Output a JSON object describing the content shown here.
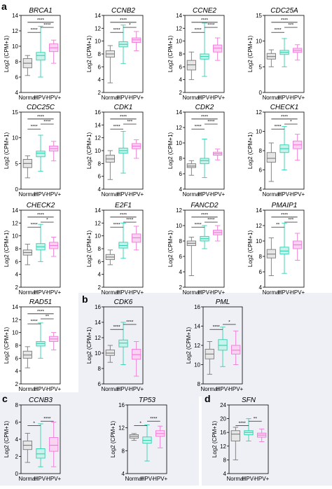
{
  "colors": {
    "Normal": "#7a7a7a",
    "HPV-": "#2fd0b0",
    "HPV+": "#f07ad6",
    "Normal_fill": "#e6e6e6",
    "HPV-_fill": "#c8f3ea",
    "HPV+_fill": "#fbd3f2",
    "panel_bg": "#eef0f6"
  },
  "panel_labels": [
    "a",
    "b",
    "c",
    "d"
  ],
  "ylabel": "Log2 (CPM+1)",
  "chart_data": [
    {
      "type": "box",
      "panel": "a",
      "gene": "BRCA1",
      "categories": [
        "Normal",
        "HPV-",
        "HPV+"
      ],
      "ylim": [
        4,
        14
      ],
      "yticks": [
        4,
        6,
        8,
        10,
        12,
        14
      ],
      "boxes": [
        {
          "min": 6.2,
          "q1": 7.2,
          "median": 7.8,
          "q3": 8.4,
          "max": 8.8
        },
        {
          "min": 6.0,
          "q1": 8.2,
          "median": 8.8,
          "q3": 9.2,
          "max": 12.6
        },
        {
          "min": 7.8,
          "q1": 9.3,
          "median": 9.8,
          "q3": 10.3,
          "max": 10.8
        }
      ],
      "sig": [
        {
          "a": 0,
          "b": 1,
          "label": "****"
        },
        {
          "a": 0,
          "b": 2,
          "label": "****"
        },
        {
          "a": 1,
          "b": 2,
          "label": "****"
        }
      ]
    },
    {
      "type": "box",
      "panel": "a",
      "gene": "CCNB2",
      "categories": [
        "Normal",
        "HPV-",
        "HPV+"
      ],
      "ylim": [
        2,
        14
      ],
      "yticks": [
        2,
        4,
        6,
        8,
        10,
        12,
        14
      ],
      "boxes": [
        {
          "min": 3.5,
          "q1": 7.5,
          "median": 8.0,
          "q3": 8.5,
          "max": 9.3
        },
        {
          "min": 6.5,
          "q1": 9.1,
          "median": 9.5,
          "q3": 9.9,
          "max": 12.5
        },
        {
          "min": 8.5,
          "q1": 9.8,
          "median": 10.2,
          "q3": 10.5,
          "max": 11.5
        }
      ],
      "sig": [
        {
          "a": 0,
          "b": 1,
          "label": "****"
        },
        {
          "a": 0,
          "b": 2,
          "label": "****"
        },
        {
          "a": 1,
          "b": 2,
          "label": "*"
        }
      ]
    },
    {
      "type": "box",
      "panel": "a",
      "gene": "CCNE2",
      "categories": [
        "Normal",
        "HPV-",
        "HPV+"
      ],
      "ylim": [
        2,
        14
      ],
      "yticks": [
        2,
        4,
        6,
        8,
        10,
        12,
        14
      ],
      "boxes": [
        {
          "min": 4.0,
          "q1": 5.5,
          "median": 6.3,
          "q3": 7.0,
          "max": 8.3
        },
        {
          "min": 4.5,
          "q1": 7.2,
          "median": 7.6,
          "q3": 8.0,
          "max": 12.8
        },
        {
          "min": 7.0,
          "q1": 8.3,
          "median": 8.9,
          "q3": 9.4,
          "max": 10.5
        }
      ],
      "sig": [
        {
          "a": 0,
          "b": 1,
          "label": "****"
        },
        {
          "a": 0,
          "b": 2,
          "label": "****"
        },
        {
          "a": 1,
          "b": 2,
          "label": "****"
        }
      ]
    },
    {
      "type": "box",
      "panel": "a",
      "gene": "CDC25A",
      "categories": [
        "Normal",
        "HPV-",
        "HPV+"
      ],
      "ylim": [
        0,
        15
      ],
      "yticks": [
        0,
        5,
        10,
        15
      ],
      "boxes": [
        {
          "min": 5.0,
          "q1": 6.5,
          "median": 7.0,
          "q3": 7.6,
          "max": 8.3
        },
        {
          "min": 5.0,
          "q1": 7.4,
          "median": 7.8,
          "q3": 8.2,
          "max": 10.5
        },
        {
          "min": 6.3,
          "q1": 7.8,
          "median": 8.2,
          "q3": 8.6,
          "max": 9.3
        }
      ],
      "sig": [
        {
          "a": 0,
          "b": 1,
          "label": "****"
        },
        {
          "a": 0,
          "b": 2,
          "label": "****"
        },
        {
          "a": 1,
          "b": 2,
          "label": "***"
        }
      ]
    },
    {
      "type": "box",
      "panel": "a",
      "gene": "CDC25C",
      "categories": [
        "Normal",
        "HPV-",
        "HPV+"
      ],
      "ylim": [
        0,
        15
      ],
      "yticks": [
        0,
        5,
        10,
        15
      ],
      "boxes": [
        {
          "min": 2.2,
          "q1": 4.2,
          "median": 5.0,
          "q3": 5.8,
          "max": 6.5
        },
        {
          "min": 3.5,
          "q1": 6.3,
          "median": 7.0,
          "q3": 7.4,
          "max": 10.5
        },
        {
          "min": 5.5,
          "q1": 7.4,
          "median": 7.9,
          "q3": 8.4,
          "max": 9.3
        }
      ],
      "sig": [
        {
          "a": 0,
          "b": 1,
          "label": "****"
        },
        {
          "a": 0,
          "b": 2,
          "label": "****"
        },
        {
          "a": 1,
          "b": 2,
          "label": "****"
        }
      ]
    },
    {
      "type": "box",
      "panel": "a",
      "gene": "CDK1",
      "categories": [
        "Normal",
        "HPV-",
        "HPV+"
      ],
      "ylim": [
        4,
        16
      ],
      "yticks": [
        4,
        6,
        8,
        10,
        12,
        14,
        16
      ],
      "boxes": [
        {
          "min": 5.5,
          "q1": 8.2,
          "median": 8.7,
          "q3": 9.3,
          "max": 10.0
        },
        {
          "min": 6.5,
          "q1": 9.6,
          "median": 10.0,
          "q3": 10.4,
          "max": 13.0
        },
        {
          "min": 8.8,
          "q1": 10.3,
          "median": 10.7,
          "q3": 11.1,
          "max": 11.7
        }
      ],
      "sig": [
        {
          "a": 0,
          "b": 1,
          "label": "****"
        },
        {
          "a": 0,
          "b": 2,
          "label": "****"
        },
        {
          "a": 1,
          "b": 2,
          "label": "***"
        }
      ]
    },
    {
      "type": "box",
      "panel": "a",
      "gene": "CDK2",
      "categories": [
        "Normal",
        "HPV-",
        "HPV+"
      ],
      "ylim": [
        4,
        14
      ],
      "yticks": [
        4,
        6,
        8,
        10,
        12,
        14
      ],
      "boxes": [
        {
          "min": 5.8,
          "q1": 6.8,
          "median": 7.0,
          "q3": 7.3,
          "max": 7.7
        },
        {
          "min": 5.5,
          "q1": 7.3,
          "median": 7.7,
          "q3": 8.0,
          "max": 10.5
        },
        {
          "min": 7.8,
          "q1": 8.4,
          "median": 8.6,
          "q3": 8.8,
          "max": 9.2
        }
      ],
      "sig": [
        {
          "a": 0,
          "b": 1,
          "label": "****"
        },
        {
          "a": 0,
          "b": 2,
          "label": "****"
        },
        {
          "a": 1,
          "b": 2,
          "label": "****"
        }
      ]
    },
    {
      "type": "box",
      "panel": "a",
      "gene": "CHECK1",
      "categories": [
        "Normal",
        "HPV-",
        "HPV+"
      ],
      "ylim": [
        4,
        12
      ],
      "yticks": [
        4,
        6,
        8,
        10,
        12
      ],
      "boxes": [
        {
          "min": 4.8,
          "q1": 6.8,
          "median": 7.2,
          "q3": 7.8,
          "max": 8.8
        },
        {
          "min": 6.0,
          "q1": 7.8,
          "median": 8.2,
          "q3": 8.6,
          "max": 10.5
        },
        {
          "min": 7.0,
          "q1": 8.2,
          "median": 8.6,
          "q3": 9.0,
          "max": 9.7
        }
      ],
      "sig": [
        {
          "a": 0,
          "b": 1,
          "label": "****"
        },
        {
          "a": 0,
          "b": 2,
          "label": "****"
        },
        {
          "a": 1,
          "b": 2,
          "label": "*"
        }
      ]
    },
    {
      "type": "box",
      "panel": "a",
      "gene": "CHECK2",
      "categories": [
        "Normal",
        "HPV-",
        "HPV+"
      ],
      "ylim": [
        2,
        14
      ],
      "yticks": [
        2,
        4,
        6,
        8,
        10,
        12,
        14
      ],
      "boxes": [
        {
          "min": 5.5,
          "q1": 7.0,
          "median": 7.4,
          "q3": 7.8,
          "max": 8.7
        },
        {
          "min": 6.0,
          "q1": 7.8,
          "median": 8.3,
          "q3": 8.8,
          "max": 11.8
        },
        {
          "min": 6.8,
          "q1": 8.0,
          "median": 8.5,
          "q3": 9.0,
          "max": 9.8
        }
      ],
      "sig": [
        {
          "a": 0,
          "b": 1,
          "label": "****"
        },
        {
          "a": 0,
          "b": 2,
          "label": "****"
        },
        {
          "a": 1,
          "b": 2,
          "label": "*"
        }
      ]
    },
    {
      "type": "box",
      "panel": "a",
      "gene": "E2F1",
      "categories": [
        "Normal",
        "HPV-",
        "HPV+"
      ],
      "ylim": [
        2,
        14
      ],
      "yticks": [
        2,
        4,
        6,
        8,
        10,
        12,
        14
      ],
      "boxes": [
        {
          "min": 5.5,
          "q1": 6.3,
          "median": 6.7,
          "q3": 7.1,
          "max": 7.8
        },
        {
          "min": 6.5,
          "q1": 8.1,
          "median": 8.5,
          "q3": 9.0,
          "max": 12.0
        },
        {
          "min": 7.8,
          "q1": 9.0,
          "median": 9.7,
          "q3": 10.3,
          "max": 11.5
        }
      ],
      "sig": [
        {
          "a": 0,
          "b": 1,
          "label": "****"
        },
        {
          "a": 0,
          "b": 2,
          "label": "****"
        },
        {
          "a": 1,
          "b": 2,
          "label": "****"
        }
      ]
    },
    {
      "type": "box",
      "panel": "a",
      "gene": "FANCD2",
      "categories": [
        "Normal",
        "HPV-",
        "HPV+"
      ],
      "ylim": [
        2,
        12
      ],
      "yticks": [
        2,
        4,
        6,
        8,
        10,
        12
      ],
      "boxes": [
        {
          "min": 3.5,
          "q1": 7.4,
          "median": 7.7,
          "q3": 8.0,
          "max": 8.5
        },
        {
          "min": 7.0,
          "q1": 8.0,
          "median": 8.3,
          "q3": 8.6,
          "max": 10.0
        },
        {
          "min": 8.0,
          "q1": 8.8,
          "median": 9.1,
          "q3": 9.4,
          "max": 10.0
        }
      ],
      "sig": [
        {
          "a": 0,
          "b": 1,
          "label": "****"
        },
        {
          "a": 0,
          "b": 2,
          "label": "****"
        },
        {
          "a": 1,
          "b": 2,
          "label": "****"
        }
      ]
    },
    {
      "type": "box",
      "panel": "a",
      "gene": "PMAIP1",
      "categories": [
        "Normal",
        "HPV-",
        "HPV+"
      ],
      "ylim": [
        4,
        14
      ],
      "yticks": [
        4,
        6,
        8,
        10,
        12,
        14
      ],
      "boxes": [
        {
          "min": 5.5,
          "q1": 7.8,
          "median": 8.3,
          "q3": 8.9,
          "max": 10.4
        },
        {
          "min": 5.8,
          "q1": 8.3,
          "median": 8.7,
          "q3": 9.2,
          "max": 12.3
        },
        {
          "min": 7.5,
          "q1": 9.0,
          "median": 9.5,
          "q3": 10.0,
          "max": 11.0
        }
      ],
      "sig": [
        {
          "a": 0,
          "b": 1,
          "label": "**"
        },
        {
          "a": 0,
          "b": 2,
          "label": "****"
        },
        {
          "a": 1,
          "b": 2,
          "label": "***"
        }
      ]
    },
    {
      "type": "box",
      "panel": "a",
      "gene": "RAD51",
      "categories": [
        "Normal",
        "HPV-",
        "HPV+"
      ],
      "ylim": [
        2,
        14
      ],
      "yticks": [
        2,
        4,
        6,
        8,
        10,
        12,
        14
      ],
      "boxes": [
        {
          "min": 4.5,
          "q1": 6.0,
          "median": 6.5,
          "q3": 7.1,
          "max": 7.8
        },
        {
          "min": 6.0,
          "q1": 7.9,
          "median": 8.3,
          "q3": 8.6,
          "max": 11.5
        },
        {
          "min": 7.3,
          "q1": 8.6,
          "median": 9.0,
          "q3": 9.4,
          "max": 10.0
        }
      ],
      "sig": [
        {
          "a": 0,
          "b": 1,
          "label": "****"
        },
        {
          "a": 0,
          "b": 2,
          "label": "****"
        },
        {
          "a": 1,
          "b": 2,
          "label": "**"
        }
      ]
    },
    {
      "type": "box",
      "panel": "b",
      "gene": "CDK6",
      "categories": [
        "Normal",
        "HPV-",
        "HPV+"
      ],
      "ylim": [
        6,
        16
      ],
      "yticks": [
        6,
        8,
        10,
        12,
        14,
        16
      ],
      "boxes": [
        {
          "min": 8.8,
          "q1": 9.7,
          "median": 10.0,
          "q3": 10.4,
          "max": 11.0
        },
        {
          "min": 8.5,
          "q1": 10.8,
          "median": 11.3,
          "q3": 11.7,
          "max": 14.0
        },
        {
          "min": 7.0,
          "q1": 9.2,
          "median": 9.8,
          "q3": 10.5,
          "max": 11.5
        }
      ],
      "sig": [
        {
          "a": 0,
          "b": 1,
          "label": "****"
        },
        {
          "a": 1,
          "b": 2,
          "label": "****"
        }
      ]
    },
    {
      "type": "box",
      "panel": "b",
      "gene": "PML",
      "categories": [
        "Normal",
        "HPV-",
        "HPV+"
      ],
      "ylim": [
        8,
        16
      ],
      "yticks": [
        8,
        10,
        12,
        14,
        16
      ],
      "boxes": [
        {
          "min": 9.0,
          "q1": 10.6,
          "median": 11.1,
          "q3": 11.6,
          "max": 12.4
        },
        {
          "min": 9.8,
          "q1": 11.5,
          "median": 12.0,
          "q3": 12.6,
          "max": 13.9
        },
        {
          "min": 10.0,
          "q1": 11.1,
          "median": 11.5,
          "q3": 12.0,
          "max": 13.5
        }
      ],
      "sig": [
        {
          "a": 0,
          "b": 1,
          "label": "****"
        },
        {
          "a": 1,
          "b": 2,
          "label": "*"
        }
      ]
    },
    {
      "type": "box",
      "panel": "c",
      "gene": "CCNB3",
      "categories": [
        "Normal",
        "HPV-",
        "HPV+"
      ],
      "ylim": [
        0,
        8
      ],
      "yticks": [
        0,
        2,
        4,
        6,
        8
      ],
      "boxes": [
        {
          "min": 1.3,
          "q1": 2.8,
          "median": 3.3,
          "q3": 3.8,
          "max": 4.7
        },
        {
          "min": 0.8,
          "q1": 1.8,
          "median": 2.3,
          "q3": 2.9,
          "max": 5.8
        },
        {
          "min": 0.8,
          "q1": 2.6,
          "median": 3.3,
          "q3": 4.2,
          "max": 6.0
        }
      ],
      "sig": [
        {
          "a": 0,
          "b": 1,
          "label": "*"
        },
        {
          "a": 1,
          "b": 2,
          "label": "****"
        }
      ]
    },
    {
      "type": "box",
      "panel": "c",
      "gene": "TP53",
      "categories": [
        "Normal",
        "HPV-",
        "HPV+"
      ],
      "ylim": [
        4,
        16
      ],
      "yticks": [
        4,
        8,
        12,
        16
      ],
      "boxes": [
        {
          "min": 9.8,
          "q1": 10.2,
          "median": 10.5,
          "q3": 10.8,
          "max": 11.0
        },
        {
          "min": 6.2,
          "q1": 9.3,
          "median": 9.8,
          "q3": 10.4,
          "max": 12.5
        },
        {
          "min": 8.5,
          "q1": 10.5,
          "median": 11.0,
          "q3": 11.5,
          "max": 12.3
        }
      ],
      "sig": [
        {
          "a": 0,
          "b": 1,
          "label": "*"
        },
        {
          "a": 1,
          "b": 2,
          "label": "****"
        }
      ]
    },
    {
      "type": "box",
      "panel": "d",
      "gene": "SFN",
      "categories": [
        "Normal",
        "HPV-",
        "HPV+"
      ],
      "ylim": [
        4,
        24
      ],
      "yticks": [
        4,
        8,
        12,
        16,
        20,
        24
      ],
      "boxes": [
        {
          "min": 8.0,
          "q1": 13.5,
          "median": 15.5,
          "q3": 16.5,
          "max": 17.5
        },
        {
          "min": 13.5,
          "q1": 15.3,
          "median": 16.0,
          "q3": 16.5,
          "max": 20.0
        },
        {
          "min": 13.3,
          "q1": 14.6,
          "median": 15.2,
          "q3": 15.8,
          "max": 17.0
        }
      ],
      "sig": [
        {
          "a": 0,
          "b": 1,
          "label": "****"
        },
        {
          "a": 1,
          "b": 2,
          "label": "**"
        }
      ]
    }
  ]
}
